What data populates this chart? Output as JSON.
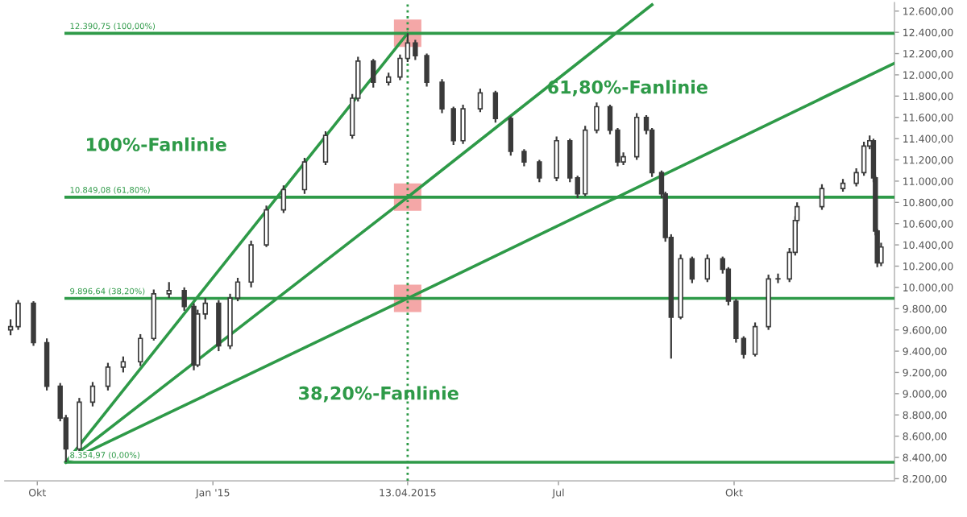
{
  "chart_data": {
    "type": "candlestick",
    "x": [
      "2014-09-17",
      "2014-09-21",
      "2014-09-29",
      "2014-10-06",
      "2014-10-13",
      "2014-10-16",
      "2014-10-23",
      "2014-10-30",
      "2014-11-07",
      "2014-11-15",
      "2014-11-24",
      "2014-12-01",
      "2014-12-09",
      "2014-12-17",
      "2014-12-22",
      "2014-12-24",
      "2014-12-28",
      "2015-01-04",
      "2015-01-10",
      "2015-01-14",
      "2015-01-21",
      "2015-01-29",
      "2015-02-07",
      "2015-02-18",
      "2015-03-01",
      "2015-03-15",
      "2015-03-18",
      "2015-03-26",
      "2015-04-03",
      "2015-04-09",
      "2015-04-13",
      "2015-04-17",
      "2015-04-23",
      "2015-05-01",
      "2015-05-07",
      "2015-05-12",
      "2015-05-21",
      "2015-05-29",
      "2015-06-06",
      "2015-06-13",
      "2015-06-21",
      "2015-06-30",
      "2015-07-07",
      "2015-07-11",
      "2015-07-15",
      "2015-07-21",
      "2015-07-28",
      "2015-08-01",
      "2015-08-04",
      "2015-08-11",
      "2015-08-16",
      "2015-08-19",
      "2015-08-24",
      "2015-08-26",
      "2015-08-29",
      "2015-09-03",
      "2015-09-09",
      "2015-09-17",
      "2015-09-25",
      "2015-09-28",
      "2015-10-02",
      "2015-10-06",
      "2015-10-12",
      "2015-10-19",
      "2015-10-24",
      "2015-10-30",
      "2015-11-02",
      "2015-11-03",
      "2015-11-16",
      "2015-11-27",
      "2015-12-04",
      "2015-12-08",
      "2015-12-11",
      "2015-12-13",
      "2015-12-14",
      "2015-12-15",
      "2015-12-17"
    ],
    "ohlc": [
      [
        9600,
        9700,
        9550,
        9630
      ],
      [
        9630,
        9880,
        9600,
        9850
      ],
      [
        9850,
        9870,
        9450,
        9480
      ],
      [
        9480,
        9520,
        9030,
        9070
      ],
      [
        9070,
        9100,
        8740,
        8770
      ],
      [
        8770,
        8800,
        8355,
        8480
      ],
      [
        8480,
        8960,
        8450,
        8920
      ],
      [
        8920,
        9110,
        8880,
        9070
      ],
      [
        9070,
        9290,
        9030,
        9250
      ],
      [
        9250,
        9350,
        9200,
        9300
      ],
      [
        9300,
        9560,
        9260,
        9520
      ],
      [
        9520,
        9980,
        9500,
        9940
      ],
      [
        9940,
        10050,
        9900,
        9970
      ],
      [
        9970,
        10000,
        9780,
        9820
      ],
      [
        9820,
        9850,
        9220,
        9270
      ],
      [
        9270,
        9790,
        9250,
        9750
      ],
      [
        9750,
        9900,
        9700,
        9850
      ],
      [
        9850,
        9880,
        9400,
        9450
      ],
      [
        9450,
        9940,
        9420,
        9900
      ],
      [
        9900,
        10090,
        9870,
        10050
      ],
      [
        10050,
        10440,
        10000,
        10400
      ],
      [
        10400,
        10770,
        10380,
        10730
      ],
      [
        10730,
        10960,
        10700,
        10920
      ],
      [
        10920,
        11220,
        10880,
        11180
      ],
      [
        11180,
        11470,
        11150,
        11430
      ],
      [
        11430,
        11820,
        11400,
        11780
      ],
      [
        11780,
        12170,
        11750,
        12130
      ],
      [
        12130,
        12150,
        11880,
        11930
      ],
      [
        11930,
        12020,
        11900,
        11980
      ],
      [
        11980,
        12190,
        11950,
        12155
      ],
      [
        12155,
        12391,
        12120,
        12300
      ],
      [
        12300,
        12330,
        12140,
        12180
      ],
      [
        12180,
        12200,
        11890,
        11930
      ],
      [
        11930,
        11960,
        11640,
        11680
      ],
      [
        11680,
        11700,
        11340,
        11380
      ],
      [
        11380,
        11720,
        11350,
        11680
      ],
      [
        11680,
        11870,
        11650,
        11830
      ],
      [
        11830,
        11850,
        11550,
        11590
      ],
      [
        11590,
        11610,
        11240,
        11280
      ],
      [
        11280,
        11300,
        11140,
        11180
      ],
      [
        11180,
        11200,
        10990,
        11030
      ],
      [
        11030,
        11420,
        11000,
        11380
      ],
      [
        11380,
        11400,
        10990,
        11030
      ],
      [
        11030,
        11050,
        10840,
        10880
      ],
      [
        10880,
        11520,
        10860,
        11480
      ],
      [
        11480,
        11740,
        11450,
        11700
      ],
      [
        11700,
        11720,
        11440,
        11480
      ],
      [
        11480,
        11500,
        11140,
        11180
      ],
      [
        11180,
        11270,
        11150,
        11230
      ],
      [
        11230,
        11640,
        11200,
        11600
      ],
      [
        11600,
        11620,
        11440,
        11480
      ],
      [
        11480,
        11500,
        11040,
        11080
      ],
      [
        11080,
        11100,
        10840,
        10880
      ],
      [
        10880,
        10900,
        10430,
        10470
      ],
      [
        10470,
        10500,
        9330,
        9720
      ],
      [
        9720,
        10310,
        9700,
        10270
      ],
      [
        10270,
        10290,
        10040,
        10080
      ],
      [
        10080,
        10310,
        10050,
        10270
      ],
      [
        10270,
        10290,
        10130,
        10170
      ],
      [
        10170,
        10190,
        9830,
        9870
      ],
      [
        9870,
        9890,
        9480,
        9520
      ],
      [
        9520,
        9540,
        9330,
        9370
      ],
      [
        9370,
        9670,
        9350,
        9630
      ],
      [
        9630,
        10120,
        9600,
        10080
      ],
      [
        10080,
        10130,
        10040,
        10080
      ],
      [
        10080,
        10370,
        10050,
        10330
      ],
      [
        10330,
        10670,
        10300,
        10630
      ],
      [
        10630,
        10800,
        10600,
        10760
      ],
      [
        10760,
        10970,
        10730,
        10930
      ],
      [
        10930,
        11020,
        10900,
        10980
      ],
      [
        10980,
        11120,
        10950,
        11080
      ],
      [
        11080,
        11370,
        11050,
        11330
      ],
      [
        11330,
        11430,
        11300,
        11380
      ],
      [
        11380,
        11400,
        10990,
        11030
      ],
      [
        11030,
        11050,
        10490,
        10530
      ],
      [
        10530,
        10550,
        10190,
        10230
      ],
      [
        10230,
        10420,
        10200,
        10380
      ]
    ],
    "color": "#3a3a3a",
    "series": [
      {
        "type": "line",
        "x": [
          "2014-10-16",
          "2015-04-13"
        ],
        "values": [
          8355,
          12391
        ],
        "color": "#2e9a48"
      },
      {
        "type": "line",
        "x": [
          "2014-10-16",
          "2015-04-13",
          "2015-08-19"
        ],
        "values": [
          8355,
          10849,
          12660
        ],
        "color": "#2e9a48"
      },
      {
        "type": "line",
        "x": [
          "2014-10-16",
          "2015-04-13",
          "2015-12-24"
        ],
        "values": [
          8355,
          9897,
          12110
        ],
        "color": "#2e9a48"
      },
      {
        "type": "scatter",
        "x": [
          "2015-04-13",
          "2015-04-13",
          "2015-04-13"
        ],
        "values": [
          12391,
          10849,
          9897
        ],
        "color": "#f08a8a",
        "marker": "square"
      }
    ],
    "ref_lines": [
      {
        "axis": "y",
        "value": 12390.75,
        "label": "12.390,75 (100,00%)",
        "color": "#2e9a48"
      },
      {
        "axis": "y",
        "value": 10849.08,
        "label": "10.849,08 (61,80%)",
        "color": "#2e9a48"
      },
      {
        "axis": "y",
        "value": 9896.64,
        "label": "9.896,64 (38,20%)",
        "color": "#2e9a48"
      },
      {
        "axis": "y",
        "value": 8354.97,
        "label": "8.354,97 (0,00%)",
        "color": "#2e9a48"
      },
      {
        "axis": "x",
        "value": "2015-04-13",
        "color": "#2e9a48",
        "line_style": "dotted"
      }
    ],
    "annotations": [
      "100%-Fanlinie",
      "61,80%-Fanlinie",
      "38,20%-Fanlinie"
    ],
    "xlim": [
      "2014-09-14",
      "2015-12-24"
    ],
    "xticks": [
      {
        "value": "2014-10-01",
        "label": "Okt"
      },
      {
        "value": "2015-01-01",
        "label": "Jan '15"
      },
      {
        "value": "2015-04-13",
        "label": "13.04.2015"
      },
      {
        "value": "2015-07-01",
        "label": "Jul"
      },
      {
        "value": "2015-10-01",
        "label": "Okt"
      }
    ],
    "ylim": [
      8180,
      12680
    ],
    "yticks": [
      {
        "value": 8200,
        "label": "8.200,00"
      },
      {
        "value": 8400,
        "label": "8.400,00"
      },
      {
        "value": 8600,
        "label": "8.600,00"
      },
      {
        "value": 8800,
        "label": "8.800,00"
      },
      {
        "value": 9000,
        "label": "9.000,00"
      },
      {
        "value": 9200,
        "label": "9.200,00"
      },
      {
        "value": 9400,
        "label": "9.400,00"
      },
      {
        "value": 9600,
        "label": "9.600,00"
      },
      {
        "value": 9800,
        "label": "9.800,00"
      },
      {
        "value": 10000,
        "label": "10.000,00"
      },
      {
        "value": 10200,
        "label": "10.200,00"
      },
      {
        "value": 10400,
        "label": "10.400,00"
      },
      {
        "value": 10600,
        "label": "10.600,00"
      },
      {
        "value": 10800,
        "label": "10.800,00"
      },
      {
        "value": 11000,
        "label": "11.000,00"
      },
      {
        "value": 11200,
        "label": "11.200,00"
      },
      {
        "value": 11400,
        "label": "11.400,00"
      },
      {
        "value": 11600,
        "label": "11.600,00"
      },
      {
        "value": 11800,
        "label": "11.800,00"
      },
      {
        "value": 12000,
        "label": "12.000,00"
      },
      {
        "value": 12200,
        "label": "12.200,00"
      },
      {
        "value": 12400,
        "label": "12.400,00"
      },
      {
        "value": 12600,
        "label": "12.600,00"
      }
    ],
    "grid": false,
    "legend": false
  }
}
